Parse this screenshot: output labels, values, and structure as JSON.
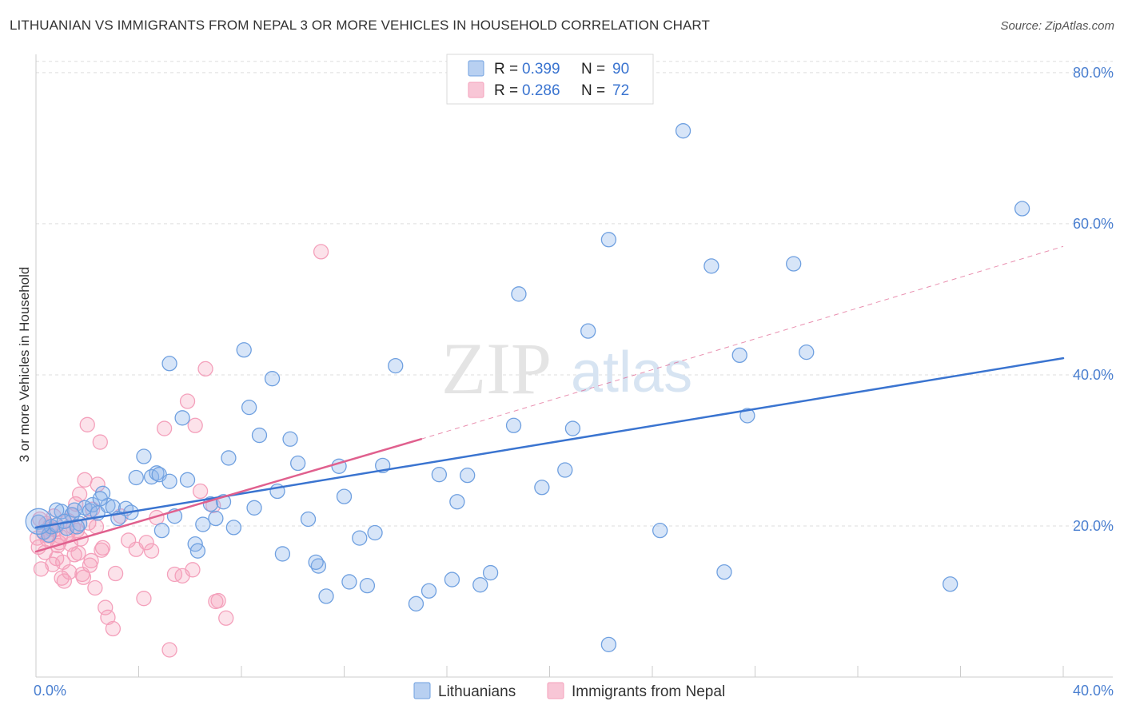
{
  "title": "LITHUANIAN VS IMMIGRANTS FROM NEPAL 3 OR MORE VEHICLES IN HOUSEHOLD CORRELATION CHART",
  "source": "Source: ZipAtlas.com",
  "watermark": {
    "zip": "ZIP",
    "atlas": "atlas"
  },
  "chart_data": {
    "type": "scatter",
    "title": "LITHUANIAN VS IMMIGRANTS FROM NEPAL 3 OR MORE VEHICLES IN HOUSEHOLD CORRELATION CHART",
    "xlabel": "",
    "ylabel": "3 or more Vehicles in Household",
    "xlim": [
      0,
      40
    ],
    "ylim": [
      0,
      82
    ],
    "x_tick_labels": [
      {
        "value": 0,
        "label": "0.0%"
      },
      {
        "value": 40,
        "label": "40.0%"
      }
    ],
    "y_tick_labels": [
      {
        "value": 20,
        "label": "20.0%"
      },
      {
        "value": 40,
        "label": "40.0%"
      },
      {
        "value": 60,
        "label": "60.0%"
      },
      {
        "value": 80,
        "label": "80.0%"
      }
    ],
    "legend_position": "top-center",
    "series": [
      {
        "name": "Lithuanians",
        "color": "#6fa0e0",
        "line_color": "#3a74d0",
        "R": "0.399",
        "N": "90",
        "trend": {
          "x0": 0,
          "y0": 19.8,
          "x1": 40,
          "y1": 42.2,
          "dash_extension": false
        },
        "points": [
          [
            0.1,
            20.5
          ],
          [
            0.3,
            19.2
          ],
          [
            0.5,
            18.8
          ],
          [
            0.6,
            19.9
          ],
          [
            0.8,
            20.1
          ],
          [
            1.0,
            21.9
          ],
          [
            1.2,
            19.7
          ],
          [
            1.4,
            21.5
          ],
          [
            1.5,
            22.1
          ],
          [
            1.7,
            20.3
          ],
          [
            1.9,
            22.4
          ],
          [
            2.1,
            22.0
          ],
          [
            2.2,
            22.8
          ],
          [
            2.4,
            21.7
          ],
          [
            2.6,
            24.3
          ],
          [
            2.8,
            22.7
          ],
          [
            3.0,
            22.5
          ],
          [
            3.2,
            21.0
          ],
          [
            3.5,
            22.3
          ],
          [
            3.9,
            26.4
          ],
          [
            4.2,
            29.2
          ],
          [
            4.5,
            26.5
          ],
          [
            4.7,
            27.0
          ],
          [
            4.8,
            26.8
          ],
          [
            5.2,
            25.9
          ],
          [
            5.2,
            41.5
          ],
          [
            5.7,
            34.3
          ],
          [
            5.9,
            26.1
          ],
          [
            6.2,
            17.6
          ],
          [
            6.3,
            16.7
          ],
          [
            6.8,
            22.9
          ],
          [
            7.0,
            21.0
          ],
          [
            7.3,
            23.2
          ],
          [
            7.7,
            19.8
          ],
          [
            8.1,
            43.3
          ],
          [
            8.3,
            35.7
          ],
          [
            8.7,
            32.0
          ],
          [
            9.2,
            39.5
          ],
          [
            9.6,
            16.3
          ],
          [
            9.9,
            31.5
          ],
          [
            10.2,
            28.3
          ],
          [
            10.6,
            20.9
          ],
          [
            11.0,
            14.7
          ],
          [
            11.3,
            10.7
          ],
          [
            11.8,
            27.9
          ],
          [
            12.2,
            12.6
          ],
          [
            12.6,
            18.4
          ],
          [
            12.9,
            12.1
          ],
          [
            13.5,
            28.0
          ],
          [
            14.0,
            41.2
          ],
          [
            14.8,
            9.7
          ],
          [
            15.3,
            11.4
          ],
          [
            15.7,
            26.8
          ],
          [
            16.2,
            12.9
          ],
          [
            16.8,
            26.7
          ],
          [
            17.3,
            12.2
          ],
          [
            17.7,
            13.8
          ],
          [
            18.6,
            33.3
          ],
          [
            18.8,
            50.7
          ],
          [
            19.7,
            25.1
          ],
          [
            20.6,
            27.4
          ],
          [
            20.9,
            32.9
          ],
          [
            21.5,
            45.8
          ],
          [
            22.3,
            57.9
          ],
          [
            22.3,
            4.3
          ],
          [
            24.3,
            19.4
          ],
          [
            25.2,
            72.3
          ],
          [
            26.3,
            54.4
          ],
          [
            26.8,
            13.9
          ],
          [
            27.4,
            42.6
          ],
          [
            27.7,
            34.6
          ],
          [
            29.5,
            54.7
          ],
          [
            30.0,
            43.0
          ],
          [
            35.6,
            12.3
          ],
          [
            38.4,
            62.0
          ],
          [
            0.8,
            22.1
          ],
          [
            1.1,
            20.6
          ],
          [
            1.6,
            19.9
          ],
          [
            2.5,
            23.6
          ],
          [
            3.7,
            21.8
          ],
          [
            4.9,
            19.4
          ],
          [
            5.4,
            21.3
          ],
          [
            6.5,
            20.2
          ],
          [
            7.5,
            29.0
          ],
          [
            8.5,
            22.4
          ],
          [
            9.4,
            24.6
          ],
          [
            10.9,
            15.2
          ],
          [
            12.0,
            23.9
          ],
          [
            13.2,
            19.1
          ],
          [
            16.4,
            23.2
          ]
        ]
      },
      {
        "name": "Immigrants from Nepal",
        "color": "#f4a0bb",
        "line_color": "#e0608e",
        "R": "0.286",
        "N": "72",
        "trend": {
          "x0": 0,
          "y0": 16.6,
          "x1": 15,
          "y1": 31.5,
          "dash_to_x": 40,
          "dash_to_y": 57.0,
          "dash_extension": true
        },
        "points": [
          [
            0.1,
            17.2
          ],
          [
            0.2,
            14.3
          ],
          [
            0.3,
            19.1
          ],
          [
            0.4,
            20.3
          ],
          [
            0.5,
            18.7
          ],
          [
            0.6,
            19.6
          ],
          [
            0.7,
            21.3
          ],
          [
            0.8,
            15.7
          ],
          [
            0.9,
            17.8
          ],
          [
            1.0,
            13.1
          ],
          [
            1.1,
            12.7
          ],
          [
            1.2,
            18.9
          ],
          [
            1.3,
            13.9
          ],
          [
            1.4,
            21.4
          ],
          [
            1.5,
            16.2
          ],
          [
            1.6,
            19.4
          ],
          [
            1.7,
            24.2
          ],
          [
            1.8,
            13.6
          ],
          [
            1.9,
            26.1
          ],
          [
            2.0,
            33.4
          ],
          [
            2.1,
            14.8
          ],
          [
            2.2,
            22.2
          ],
          [
            2.3,
            11.8
          ],
          [
            2.4,
            25.5
          ],
          [
            2.5,
            31.1
          ],
          [
            2.6,
            17.1
          ],
          [
            2.7,
            9.2
          ],
          [
            2.8,
            7.9
          ],
          [
            3.0,
            6.4
          ],
          [
            3.1,
            13.7
          ],
          [
            3.3,
            21.3
          ],
          [
            3.6,
            18.1
          ],
          [
            3.9,
            16.9
          ],
          [
            4.2,
            10.4
          ],
          [
            4.5,
            16.7
          ],
          [
            4.7,
            21.1
          ],
          [
            5.0,
            32.9
          ],
          [
            5.2,
            3.6
          ],
          [
            5.4,
            13.6
          ],
          [
            5.7,
            13.4
          ],
          [
            6.2,
            33.3
          ],
          [
            6.4,
            24.6
          ],
          [
            6.6,
            40.8
          ],
          [
            6.9,
            22.7
          ],
          [
            7.0,
            10.0
          ],
          [
            7.4,
            7.8
          ],
          [
            11.1,
            56.3
          ],
          [
            0.05,
            18.4
          ],
          [
            0.15,
            20.9
          ],
          [
            0.35,
            16.5
          ],
          [
            0.45,
            18.2
          ],
          [
            0.55,
            20.0
          ],
          [
            0.65,
            14.9
          ],
          [
            0.75,
            19.5
          ],
          [
            0.85,
            17.4
          ],
          [
            0.95,
            18.6
          ],
          [
            1.05,
            15.2
          ],
          [
            1.25,
            20.7
          ],
          [
            1.35,
            17.6
          ],
          [
            1.45,
            19.8
          ],
          [
            1.55,
            22.9
          ],
          [
            1.65,
            16.4
          ],
          [
            1.75,
            18.3
          ],
          [
            1.85,
            13.2
          ],
          [
            2.05,
            20.4
          ],
          [
            2.15,
            15.4
          ],
          [
            2.35,
            19.9
          ],
          [
            2.55,
            16.8
          ],
          [
            4.3,
            17.8
          ],
          [
            5.9,
            36.5
          ],
          [
            6.1,
            14.2
          ],
          [
            7.1,
            10.1
          ]
        ]
      }
    ]
  },
  "legend": {
    "r_label": "R =",
    "n_label": "N =",
    "rows": [
      {
        "r": "0.399",
        "n": "90"
      },
      {
        "r": "0.286",
        "n": "72"
      }
    ]
  },
  "bottom_legend": [
    {
      "label": "Lithuanians"
    },
    {
      "label": "Immigrants from Nepal"
    }
  ]
}
